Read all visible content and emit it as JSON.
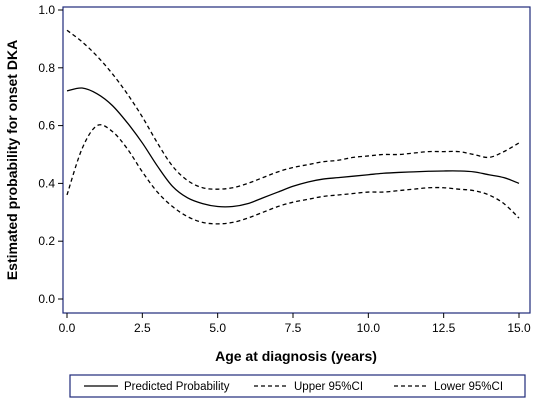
{
  "chart_data": {
    "type": "line",
    "title": "",
    "xlabel": "Age at diagnosis (years)",
    "ylabel": "Estimated probability for onset DKA",
    "xlim": [
      0,
      15
    ],
    "ylim": [
      0,
      1
    ],
    "x_ticks": [
      "0.0",
      "2.5",
      "5.0",
      "7.5",
      "10.0",
      "12.5",
      "15.0"
    ],
    "y_ticks": [
      "0.0",
      "0.2",
      "0.4",
      "0.6",
      "0.8",
      "1.0"
    ],
    "grid": false,
    "legend_position": "bottom",
    "x": [
      0.0,
      0.5,
      1.0,
      1.5,
      2.0,
      2.5,
      3.0,
      3.5,
      4.0,
      4.5,
      5.0,
      5.5,
      6.0,
      6.5,
      7.0,
      7.5,
      8.0,
      8.5,
      9.0,
      9.5,
      10.0,
      10.5,
      11.0,
      11.5,
      12.0,
      12.5,
      13.0,
      13.5,
      14.0,
      14.5,
      15.0
    ],
    "series": [
      {
        "name": "Predicted Probability",
        "style": "solid",
        "values": [
          0.72,
          0.73,
          0.71,
          0.67,
          0.61,
          0.54,
          0.46,
          0.39,
          0.35,
          0.33,
          0.32,
          0.32,
          0.33,
          0.35,
          0.37,
          0.39,
          0.405,
          0.415,
          0.42,
          0.425,
          0.43,
          0.435,
          0.438,
          0.44,
          0.442,
          0.443,
          0.443,
          0.44,
          0.43,
          0.42,
          0.4
        ]
      },
      {
        "name": "Upper 95%CI",
        "style": "dashed",
        "values": [
          0.93,
          0.89,
          0.84,
          0.78,
          0.71,
          0.63,
          0.54,
          0.46,
          0.41,
          0.385,
          0.38,
          0.385,
          0.4,
          0.42,
          0.44,
          0.455,
          0.465,
          0.475,
          0.48,
          0.49,
          0.495,
          0.5,
          0.5,
          0.505,
          0.51,
          0.51,
          0.51,
          0.5,
          0.49,
          0.51,
          0.54
        ]
      },
      {
        "name": "Lower 95%CI",
        "style": "dashed",
        "values": [
          0.36,
          0.52,
          0.6,
          0.58,
          0.52,
          0.44,
          0.37,
          0.32,
          0.285,
          0.265,
          0.26,
          0.265,
          0.28,
          0.3,
          0.32,
          0.335,
          0.345,
          0.355,
          0.36,
          0.365,
          0.37,
          0.37,
          0.375,
          0.38,
          0.385,
          0.385,
          0.38,
          0.375,
          0.36,
          0.33,
          0.28
        ]
      }
    ]
  }
}
